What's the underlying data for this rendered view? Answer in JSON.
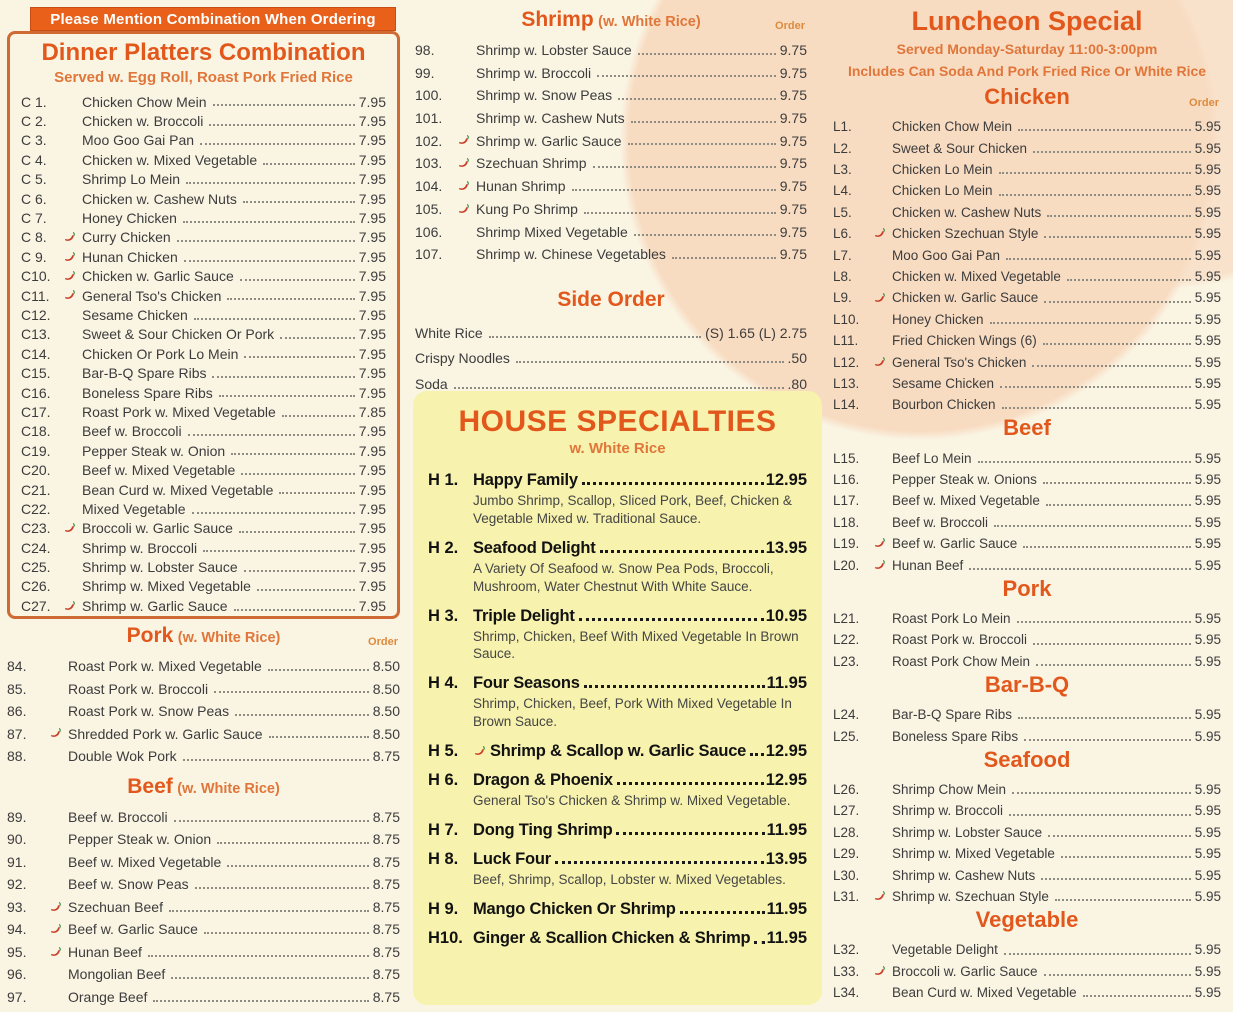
{
  "colors": {
    "accent_orange": "#e2581c",
    "sub_orange": "#e0763a",
    "banner_bg": "#e8601a",
    "banner_text": "#ffffff",
    "house_box_bg": "#f7f2ad",
    "page_bg": "#faf4e3",
    "peach_blob": "#f8dcc2",
    "pepper_red": "#c8402a",
    "box_border": "#cf6a35"
  },
  "header": {
    "banner": "Please Mention Combination When Ordering"
  },
  "left": {
    "combo": {
      "title": "Dinner Platters Combination",
      "subtitle": "Served w. Egg Roll, Roast Pork Fried Rice",
      "items": [
        {
          "num": "C 1.",
          "name": "Chicken Chow Mein",
          "price": "7.95",
          "spicy": false
        },
        {
          "num": "C 2.",
          "name": "Chicken w. Broccoli",
          "price": "7.95",
          "spicy": false
        },
        {
          "num": "C 3.",
          "name": "Moo Goo Gai Pan",
          "price": "7.95",
          "spicy": false
        },
        {
          "num": "C 4.",
          "name": "Chicken w. Mixed Vegetable",
          "price": "7.95",
          "spicy": false
        },
        {
          "num": "C 5.",
          "name": "Shrimp Lo Mein",
          "price": "7.95",
          "spicy": false
        },
        {
          "num": "C 6.",
          "name": "Chicken w. Cashew Nuts",
          "price": "7.95",
          "spicy": false
        },
        {
          "num": "C 7.",
          "name": "Honey Chicken",
          "price": "7.95",
          "spicy": false
        },
        {
          "num": "C 8.",
          "name": "Curry Chicken",
          "price": "7.95",
          "spicy": true
        },
        {
          "num": "C 9.",
          "name": "Hunan Chicken",
          "price": "7.95",
          "spicy": true
        },
        {
          "num": "C10.",
          "name": "Chicken w. Garlic Sauce",
          "price": "7.95",
          "spicy": true
        },
        {
          "num": "C11.",
          "name": "General Tso's Chicken",
          "price": "7.95",
          "spicy": true
        },
        {
          "num": "C12.",
          "name": "Sesame Chicken",
          "price": "7.95",
          "spicy": false
        },
        {
          "num": "C13.",
          "name": "Sweet & Sour Chicken Or Pork",
          "price": "7.95",
          "spicy": false
        },
        {
          "num": "C14.",
          "name": "Chicken Or Pork Lo Mein",
          "price": "7.95",
          "spicy": false
        },
        {
          "num": "C15.",
          "name": "Bar-B-Q Spare Ribs",
          "price": "7.95",
          "spicy": false
        },
        {
          "num": "C16.",
          "name": "Boneless Spare Ribs",
          "price": "7.95",
          "spicy": false
        },
        {
          "num": "C17.",
          "name": "Roast Pork w. Mixed Vegetable",
          "price": "7.85",
          "spicy": false
        },
        {
          "num": "C18.",
          "name": "Beef w. Broccoli",
          "price": "7.95",
          "spicy": false
        },
        {
          "num": "C19.",
          "name": "Pepper Steak w. Onion",
          "price": "7.95",
          "spicy": false
        },
        {
          "num": "C20.",
          "name": "Beef w. Mixed Vegetable",
          "price": "7.95",
          "spicy": false
        },
        {
          "num": "C21.",
          "name": "Bean Curd w. Mixed Vegetable",
          "price": "7.95",
          "spicy": false
        },
        {
          "num": "C22.",
          "name": "Mixed Vegetable",
          "price": "7.95",
          "spicy": false
        },
        {
          "num": "C23.",
          "name": "Broccoli w. Garlic Sauce",
          "price": "7.95",
          "spicy": true
        },
        {
          "num": "C24.",
          "name": "Shrimp w. Broccoli",
          "price": "7.95",
          "spicy": false
        },
        {
          "num": "C25.",
          "name": "Shrimp w. Lobster Sauce",
          "price": "7.95",
          "spicy": false
        },
        {
          "num": "C26.",
          "name": "Shrimp w. Mixed Vegetable",
          "price": "7.95",
          "spicy": false
        },
        {
          "num": "C27.",
          "name": "Shrimp w. Garlic Sauce",
          "price": "7.95",
          "spicy": true
        }
      ]
    },
    "pork": {
      "title": "Pork",
      "note": "(w. White Rice)",
      "order_label": "Order",
      "items": [
        {
          "num": "84.",
          "name": "Roast Pork w. Mixed Vegetable",
          "price": "8.50",
          "spicy": false
        },
        {
          "num": "85.",
          "name": "Roast Pork w. Broccoli",
          "price": "8.50",
          "spicy": false
        },
        {
          "num": "86.",
          "name": "Roast Pork w. Snow Peas",
          "price": "8.50",
          "spicy": false
        },
        {
          "num": "87.",
          "name": "Shredded Pork w. Garlic Sauce",
          "price": "8.50",
          "spicy": true
        },
        {
          "num": "88.",
          "name": "Double Wok Pork",
          "price": "8.75",
          "spicy": false
        }
      ]
    },
    "beef": {
      "title": "Beef",
      "note": "(w. White Rice)",
      "items": [
        {
          "num": "89.",
          "name": "Beef w. Broccoli",
          "price": "8.75",
          "spicy": false
        },
        {
          "num": "90.",
          "name": "Pepper Steak w. Onion",
          "price": "8.75",
          "spicy": false
        },
        {
          "num": "91.",
          "name": "Beef w. Mixed Vegetable",
          "price": "8.75",
          "spicy": false
        },
        {
          "num": "92.",
          "name": "Beef w. Snow Peas",
          "price": "8.75",
          "spicy": false
        },
        {
          "num": "93.",
          "name": "Szechuan Beef",
          "price": "8.75",
          "spicy": true
        },
        {
          "num": "94.",
          "name": "Beef w. Garlic Sauce",
          "price": "8.75",
          "spicy": true
        },
        {
          "num": "95.",
          "name": "Hunan Beef",
          "price": "8.75",
          "spicy": true
        },
        {
          "num": "96.",
          "name": "Mongolian Beef",
          "price": "8.75",
          "spicy": false
        },
        {
          "num": "97.",
          "name": "Orange Beef",
          "price": "8.75",
          "spicy": false
        }
      ]
    }
  },
  "middle": {
    "shrimp": {
      "title": "Shrimp",
      "note": "(w. White Rice)",
      "order_label": "Order",
      "items": [
        {
          "num": "98.",
          "name": "Shrimp w. Lobster Sauce",
          "price": "9.75",
          "spicy": false
        },
        {
          "num": "99.",
          "name": "Shrimp w. Broccoli",
          "price": "9.75",
          "spicy": false
        },
        {
          "num": "100.",
          "name": "Shrimp w. Snow Peas",
          "price": "9.75",
          "spicy": false
        },
        {
          "num": "101.",
          "name": "Shrimp w. Cashew Nuts",
          "price": "9.75",
          "spicy": false
        },
        {
          "num": "102.",
          "name": "Shrimp w. Garlic Sauce",
          "price": "9.75",
          "spicy": true
        },
        {
          "num": "103.",
          "name": "Szechuan Shrimp",
          "price": "9.75",
          "spicy": true
        },
        {
          "num": "104.",
          "name": "Hunan Shrimp",
          "price": "9.75",
          "spicy": true
        },
        {
          "num": "105.",
          "name": "Kung Po Shrimp",
          "price": "9.75",
          "spicy": true
        },
        {
          "num": "106.",
          "name": "Shrimp Mixed Vegetable",
          "price": "9.75",
          "spicy": false
        },
        {
          "num": "107.",
          "name": "Shrimp w. Chinese Vegetables",
          "price": "9.75",
          "spicy": false
        }
      ]
    },
    "side_order": {
      "title": "Side Order",
      "items": [
        {
          "name": "White Rice",
          "price": "(S) 1.65 (L) 2.75"
        },
        {
          "name": "Crispy Noodles",
          "price": ".50"
        },
        {
          "name": "Soda",
          "price": ".80"
        }
      ]
    },
    "house": {
      "title": "HOUSE SPECIALTIES",
      "subtitle": "w. White Rice",
      "items": [
        {
          "num": "H 1.",
          "name": "Happy Family",
          "price": "12.95",
          "spicy": false,
          "desc": "Jumbo Shrimp, Scallop, Sliced Pork, Beef, Chicken & Vegetable Mixed w. Traditional Sauce."
        },
        {
          "num": "H 2.",
          "name": "Seafood Delight",
          "price": "13.95",
          "spicy": false,
          "desc": "A Variety Of Seafood w. Snow Pea Pods, Broccoli, Mushroom, Water Chestnut With White Sauce."
        },
        {
          "num": "H 3.",
          "name": "Triple Delight",
          "price": "10.95",
          "spicy": false,
          "desc": "Shrimp, Chicken, Beef With Mixed Vegetable In Brown Sauce."
        },
        {
          "num": "H 4.",
          "name": "Four Seasons",
          "price": "11.95",
          "spicy": false,
          "desc": "Shrimp, Chicken, Beef, Pork With Mixed Vegetable In Brown Sauce."
        },
        {
          "num": "H 5.",
          "name": "Shrimp & Scallop w. Garlic Sauce",
          "price": "12.95",
          "spicy": true
        },
        {
          "num": "H 6.",
          "name": "Dragon & Phoenix",
          "price": "12.95",
          "spicy": false,
          "desc": "General Tso's Chicken & Shrimp w. Mixed Vegetable."
        },
        {
          "num": "H 7.",
          "name": "Dong Ting Shrimp",
          "price": "11.95",
          "spicy": false
        },
        {
          "num": "H 8.",
          "name": "Luck Four",
          "price": "13.95",
          "spicy": false,
          "desc": "Beef, Shrimp, Scallop, Lobster w. Mixed Vegetables."
        },
        {
          "num": "H 9.",
          "name": "Mango Chicken Or Shrimp",
          "price": "11.95",
          "spicy": false
        },
        {
          "num": "H10.",
          "name": "Ginger & Scallion Chicken & Shrimp",
          "price": "11.95",
          "spicy": false
        }
      ]
    }
  },
  "right": {
    "title": "Luncheon Special",
    "subtitle1": "Served Monday-Saturday 11:00-3:00pm",
    "subtitle2": "Includes Can Soda And Pork Fried Rice Or White Rice",
    "groups": [
      {
        "title": "Chicken",
        "order_label": "Order",
        "items": [
          {
            "num": "L1.",
            "name": "Chicken Chow Mein",
            "price": "5.95",
            "spicy": false
          },
          {
            "num": "L2.",
            "name": "Sweet & Sour Chicken",
            "price": "5.95",
            "spicy": false
          },
          {
            "num": "L3.",
            "name": "Chicken Lo Mein",
            "price": "5.95",
            "spicy": false
          },
          {
            "num": "L4.",
            "name": "Chicken Lo Mein",
            "price": "5.95",
            "spicy": false
          },
          {
            "num": "L5.",
            "name": "Chicken w. Cashew Nuts",
            "price": "5.95",
            "spicy": false
          },
          {
            "num": "L6.",
            "name": "Chicken Szechuan Style",
            "price": "5.95",
            "spicy": true
          },
          {
            "num": "L7.",
            "name": "Moo Goo Gai Pan",
            "price": "5.95",
            "spicy": false
          },
          {
            "num": "L8.",
            "name": "Chicken w. Mixed Vegetable",
            "price": "5.95",
            "spicy": false
          },
          {
            "num": "L9.",
            "name": "Chicken w. Garlic Sauce",
            "price": "5.95",
            "spicy": true
          },
          {
            "num": "L10.",
            "name": "Honey Chicken",
            "price": "5.95",
            "spicy": false
          },
          {
            "num": "L11.",
            "name": "Fried Chicken Wings (6)",
            "price": "5.95",
            "spicy": false
          },
          {
            "num": "L12.",
            "name": "General Tso's Chicken",
            "price": "5.95",
            "spicy": true
          },
          {
            "num": "L13.",
            "name": "Sesame Chicken",
            "price": "5.95",
            "spicy": false
          },
          {
            "num": "L14.",
            "name": "Bourbon Chicken",
            "price": "5.95",
            "spicy": false
          }
        ]
      },
      {
        "title": "Beef",
        "items": [
          {
            "num": "L15.",
            "name": "Beef Lo Mein",
            "price": "5.95",
            "spicy": false
          },
          {
            "num": "L16.",
            "name": "Pepper Steak w. Onions",
            "price": "5.95",
            "spicy": false
          },
          {
            "num": "L17.",
            "name": "Beef w. Mixed Vegetable",
            "price": "5.95",
            "spicy": false
          },
          {
            "num": "L18.",
            "name": "Beef w. Broccoli",
            "price": "5.95",
            "spicy": false
          },
          {
            "num": "L19.",
            "name": "Beef w. Garlic Sauce",
            "price": "5.95",
            "spicy": true
          },
          {
            "num": "L20.",
            "name": "Hunan Beef",
            "price": "5.95",
            "spicy": true
          }
        ]
      },
      {
        "title": "Pork",
        "items": [
          {
            "num": "L21.",
            "name": "Roast Pork Lo Mein",
            "price": "5.95",
            "spicy": false
          },
          {
            "num": "L22.",
            "name": "Roast Pork w. Broccoli",
            "price": "5.95",
            "spicy": false
          },
          {
            "num": "L23.",
            "name": "Roast Pork Chow Mein",
            "price": "5.95",
            "spicy": false
          }
        ]
      },
      {
        "title": "Bar-B-Q",
        "items": [
          {
            "num": "L24.",
            "name": "Bar-B-Q Spare Ribs",
            "price": "5.95",
            "spicy": false
          },
          {
            "num": "L25.",
            "name": "Boneless Spare Ribs",
            "price": "5.95",
            "spicy": false
          }
        ]
      },
      {
        "title": "Seafood",
        "items": [
          {
            "num": "L26.",
            "name": "Shrimp Chow Mein",
            "price": "5.95",
            "spicy": false
          },
          {
            "num": "L27.",
            "name": "Shrimp w. Broccoli",
            "price": "5.95",
            "spicy": false
          },
          {
            "num": "L28.",
            "name": "Shrimp w. Lobster Sauce",
            "price": "5.95",
            "spicy": false
          },
          {
            "num": "L29.",
            "name": "Shrimp w. Mixed Vegetable",
            "price": "5.95",
            "spicy": false
          },
          {
            "num": "L30.",
            "name": "Shrimp w. Cashew Nuts",
            "price": "5.95",
            "spicy": false
          },
          {
            "num": "L31.",
            "name": "Shrimp w. Szechuan Style",
            "price": "5.95",
            "spicy": true
          }
        ]
      },
      {
        "title": "Vegetable",
        "items": [
          {
            "num": "L32.",
            "name": "Vegetable Delight",
            "price": "5.95",
            "spicy": false
          },
          {
            "num": "L33.",
            "name": "Broccoli w. Garlic Sauce",
            "price": "5.95",
            "spicy": true
          },
          {
            "num": "L34.",
            "name": "Bean Curd w. Mixed Vegetable",
            "price": "5.95",
            "spicy": false
          }
        ]
      }
    ]
  }
}
